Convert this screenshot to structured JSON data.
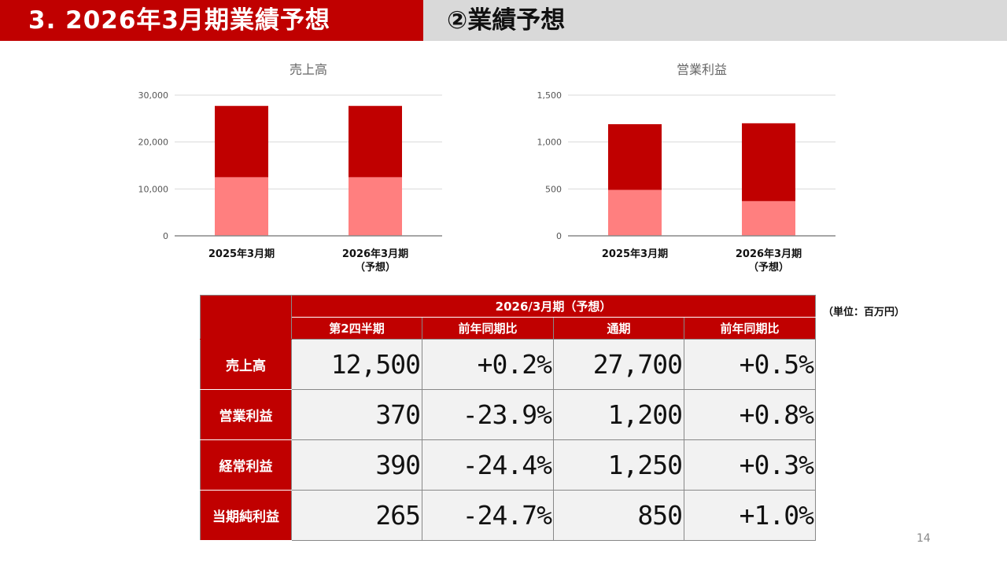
{
  "header": {
    "section_title": "3. 2026年3月期業績予想",
    "sub_title": "②業績予想"
  },
  "chart_data": [
    {
      "type": "bar",
      "stacked": true,
      "title": "売上高",
      "categories": [
        "2025年3月期",
        "2026年3月期\n（予想）"
      ],
      "series": [
        {
          "values": [
            12500,
            12500
          ],
          "color": "#ff7f7f"
        },
        {
          "values": [
            15200,
            15200
          ],
          "color": "#c00000"
        }
      ],
      "ylim": [
        0,
        30000
      ],
      "yticks": [
        "0",
        "10,000",
        "20,000",
        "30,000"
      ],
      "ytick_values": [
        0,
        10000,
        20000,
        30000
      ],
      "grid": true
    },
    {
      "type": "bar",
      "stacked": true,
      "title": "営業利益",
      "categories": [
        "2025年3月期",
        "2026年3月期\n（予想）"
      ],
      "series": [
        {
          "values": [
            490,
            370
          ],
          "color": "#ff7f7f"
        },
        {
          "values": [
            700,
            830
          ],
          "color": "#c00000"
        }
      ],
      "ylim": [
        0,
        1500
      ],
      "yticks": [
        "0",
        "500",
        "1,000",
        "1,500"
      ],
      "ytick_values": [
        0,
        500,
        1000,
        1500
      ],
      "grid": true
    }
  ],
  "table": {
    "group_header": "2026/3月期（予想）",
    "unit": "（単位：百万円）",
    "columns": [
      "第2四半期",
      "前年同期比",
      "通期",
      "前年同期比"
    ],
    "rows": [
      {
        "label": "売上高",
        "values": [
          "12,500",
          "+0.2%",
          "27,700",
          "+0.5%"
        ]
      },
      {
        "label": "営業利益",
        "values": [
          "370",
          "-23.9%",
          "1,200",
          "+0.8%"
        ]
      },
      {
        "label": "経常利益",
        "values": [
          "390",
          "-24.4%",
          "1,250",
          "+0.3%"
        ]
      },
      {
        "label": "当期純利益",
        "values": [
          "265",
          "-24.7%",
          "850",
          "+1.0%"
        ]
      }
    ]
  },
  "page_number": "14"
}
